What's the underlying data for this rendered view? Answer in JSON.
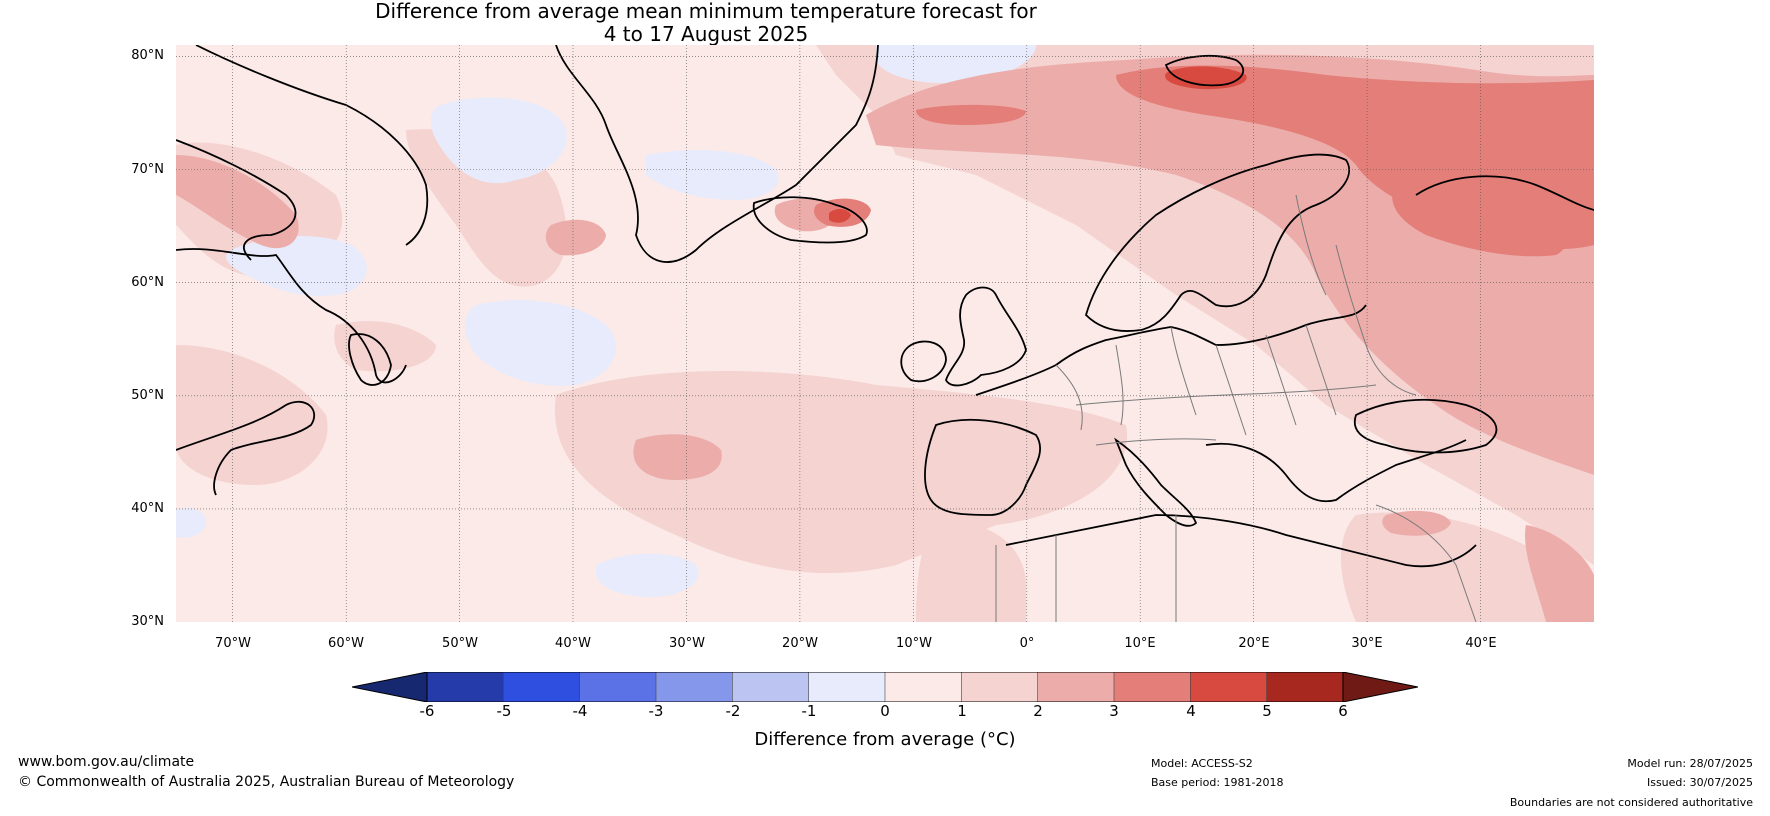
{
  "title": {
    "line1": "Difference from average mean minimum temperature forecast for",
    "line2": "4 to 17 August 2025"
  },
  "map": {
    "projection": "equirectangular",
    "lon_range": [
      -75,
      50
    ],
    "lat_range": [
      30,
      81
    ],
    "lat_labels": [
      "80°N",
      "70°N",
      "60°N",
      "50°N",
      "40°N",
      "30°N"
    ],
    "lon_labels": [
      "70°W",
      "60°W",
      "50°W",
      "40°W",
      "30°W",
      "20°W",
      "10°W",
      "0°",
      "10°E",
      "20°E",
      "30°E",
      "40°E"
    ],
    "gridlines": true,
    "background_class": "0 to 1",
    "anomaly_regions": [
      {
        "name": "Svalbard and Barents Sea",
        "class": "4 to 5"
      },
      {
        "name": "Northwest Russia",
        "class": "3 to 4"
      },
      {
        "name": "Iceland",
        "class": "4 to 5"
      },
      {
        "name": "Eastern Europe",
        "class": "2 to 3"
      },
      {
        "name": "Mid-Atlantic near 45°N 30°W",
        "class": "2 to 3"
      },
      {
        "name": "Baffin Bay",
        "class": "2 to 3"
      },
      {
        "name": "Labrador Sea south of Greenland",
        "class": "-1 to 0"
      },
      {
        "name": "Greenland ice sheet",
        "class": "-1 to 0"
      },
      {
        "name": "Central North Atlantic near 52°N 40°W",
        "class": "-1 to 0"
      },
      {
        "name": "Atlantic near 33°N 30°W",
        "class": "-1 to 0"
      }
    ]
  },
  "colorbar": {
    "ticks": [
      "-6",
      "-5",
      "-4",
      "-3",
      "-2",
      "-1",
      "0",
      "1",
      "2",
      "3",
      "4",
      "5",
      "6"
    ],
    "colors": [
      "#16286f",
      "#243ba9",
      "#2e4fe0",
      "#5b72e6",
      "#8497eb",
      "#bcc5f2",
      "#e8ebfb",
      "#fbeae8",
      "#f4d3d1",
      "#ecacaa",
      "#e47e78",
      "#d84a40",
      "#a6281f",
      "#701a15"
    ],
    "label": "Difference from average (°C)"
  },
  "footer": {
    "website": "www.bom.gov.au/climate",
    "copyright": "© Commonwealth of Australia 2025, Australian Bureau of Meteorology",
    "model": "Model: ACCESS-S2",
    "base_period": "Base period: 1981-2018",
    "model_run": "Model run: 28/07/2025",
    "issued": "Issued: 30/07/2025",
    "disclaimer": "Boundaries are not considered authoritative"
  }
}
